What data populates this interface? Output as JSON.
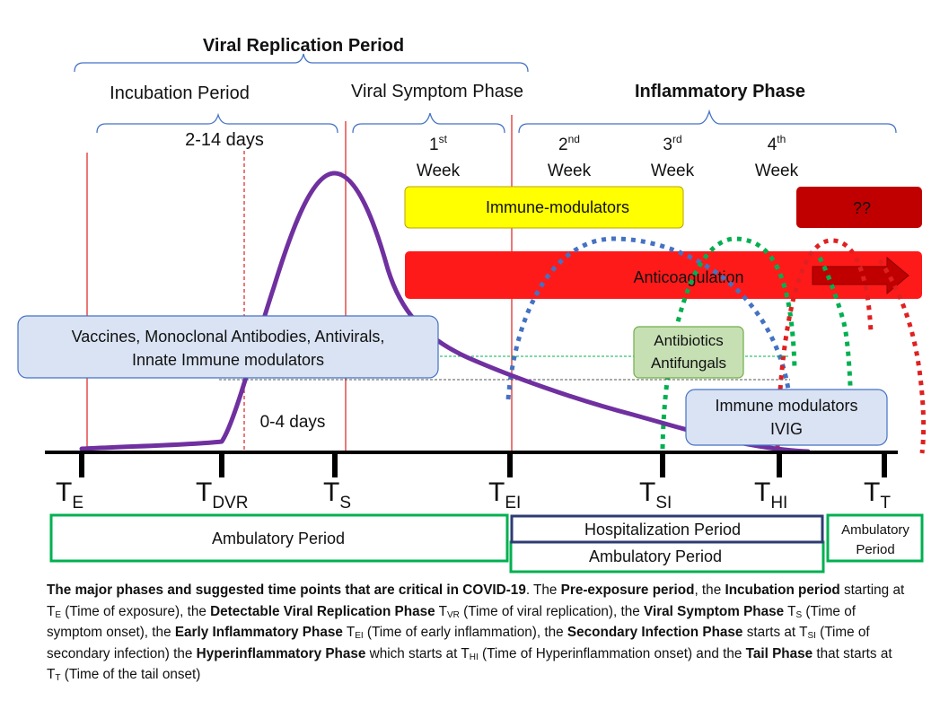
{
  "header": {
    "viral_replication": "Viral Replication Period",
    "incubation": "Incubation Period",
    "incubation_days": "2-14 days",
    "viral_symptom": "Viral Symptom Phase",
    "inflammatory": "Inflammatory Phase",
    "zero_four_days": "0-4 days"
  },
  "weeks": [
    {
      "num": "1",
      "sup": "st",
      "label": "Week"
    },
    {
      "num": "2",
      "sup": "nd",
      "label": "Week"
    },
    {
      "num": "3",
      "sup": "rd",
      "label": "Week"
    },
    {
      "num": "4",
      "sup": "th",
      "label": "Week"
    }
  ],
  "treatments": {
    "immune_modulators_top": "Immune-modulators",
    "unknown": "??",
    "anticoagulation": "Anticoagulation",
    "vaccines_line1": "Vaccines, Monoclonal Antibodies, Antivirals,",
    "vaccines_line2": "Innate Immune modulators",
    "antibiotics": "Antibiotics",
    "antifungals": "Antifungals",
    "immune_mod_line1": "Immune modulators",
    "immune_mod_line2": "IVIG"
  },
  "timepoints": [
    {
      "main": "T",
      "sub": "E"
    },
    {
      "main": "T",
      "sub": "DVR"
    },
    {
      "main": "T",
      "sub": "S"
    },
    {
      "main": "T",
      "sub": "EI"
    },
    {
      "main": "T",
      "sub": "SI"
    },
    {
      "main": "T",
      "sub": "HI"
    },
    {
      "main": "T",
      "sub": "T"
    }
  ],
  "periods": {
    "ambulatory_left": "Ambulatory Period",
    "hospitalization": "Hospitalization Period",
    "ambulatory_middle": "Ambulatory Period",
    "ambulatory_right_1": "Ambulatory",
    "ambulatory_right_2": "Period"
  },
  "colors": {
    "curve": "#7030a0",
    "red_line": "#e03030",
    "immune_yellow": "#ffff00",
    "unknown_red": "#c00000",
    "anticoag_red": "#ff1a1a",
    "light_blue_box": "#dae3f3",
    "green_box": "#c6e0b4",
    "blue_dots": "#4472c4",
    "green_dots": "#00b050",
    "red_dots": "#e02020",
    "period_green": "#00b050",
    "period_navy": "#2f3b73"
  },
  "caption": {
    "s1_b": "The major phases and suggested time points that are critical in COVID-19",
    "s2": ". The ",
    "s3_b": "Pre-exposure period",
    "s4": ", the ",
    "s5_b": "Incubation period",
    "s6": " starting at T",
    "s6_sub": "E",
    "s7": " (Time of exposure), the ",
    "s8_b": "Detectable Viral Replication Phase",
    "s9": " T",
    "s9_sub": "VR",
    "s10": " (Time of viral replication), the ",
    "s11_b": "Viral Symptom Phase",
    "s12": " T",
    "s12_sub": "S",
    "s13": " (Time of symptom onset), the ",
    "s14_b": "Early Inflammatory Phase",
    "s15": " T",
    "s15_sub": "EI",
    "s16": " (Time of early inflammation), the ",
    "s17_b": "Secondary Infection Phase",
    "s18": " starts at T",
    "s18_sub": "SI",
    "s19": " (Time of secondary infection) the ",
    "s20_b": "Hyperinflammatory Phase",
    "s21": " which starts at T",
    "s21_sub": "HI",
    "s22": " (Time of Hyperinflammation onset) and the ",
    "s23_b": "Tail Phase",
    "s24": " that starts at T",
    "s24_sub": "T",
    "s25": " (Time of the tail onset)"
  }
}
